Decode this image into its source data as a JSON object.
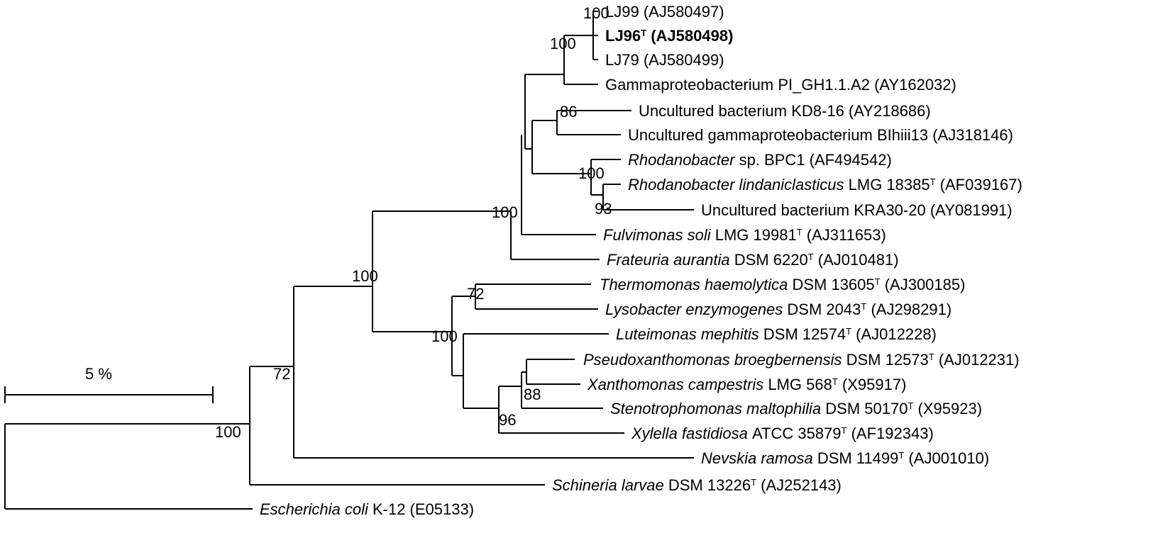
{
  "scale_bar": {
    "label": "5 %"
  },
  "taxa": [
    {
      "key": "lj99",
      "name": "LJ99",
      "type_strain": false,
      "accession": "(AJ580497)"
    },
    {
      "key": "lj96",
      "name": "LJ96",
      "type_strain": true,
      "accession": "(AJ580498)",
      "bold": true
    },
    {
      "key": "lj79",
      "name": "LJ79",
      "type_strain": false,
      "accession": "(AJ580499)"
    },
    {
      "key": "gamma_pi",
      "name": "Gammaproteobacterium PI_GH1.1.A2",
      "type_strain": false,
      "accession": "(AY162032)"
    },
    {
      "key": "unc_kd8",
      "name": "Uncultured bacterium KD8-16",
      "type_strain": false,
      "accession": "(AY218686)"
    },
    {
      "key": "unc_gamma",
      "name": "Uncultured gammaproteobacterium BIhiii13",
      "type_strain": false,
      "accession": "(AJ318146)"
    },
    {
      "key": "rhod_sp",
      "italic": "Rhodanobacter",
      "name": "sp. BPC1",
      "type_strain": false,
      "accession": "(AF494542)"
    },
    {
      "key": "rhod_lind",
      "italic": "Rhodanobacter lindaniclasticus",
      "name": "LMG 18385",
      "type_strain": true,
      "accession": "(AF039167)"
    },
    {
      "key": "unc_kra",
      "name": "Uncultured bacterium KRA30-20",
      "type_strain": false,
      "accession": "(AY081991)"
    },
    {
      "key": "fulvi",
      "italic": "Fulvimonas soli",
      "name": "LMG 19981",
      "type_strain": true,
      "accession": "(AJ311653)"
    },
    {
      "key": "frat",
      "italic": "Frateuria aurantia",
      "name": "DSM 6220",
      "type_strain": true,
      "accession": "(AJ010481)"
    },
    {
      "key": "thermo",
      "italic": "Thermomonas haemolytica",
      "name": "DSM 13605",
      "type_strain": true,
      "accession": "(AJ300185)"
    },
    {
      "key": "lyso",
      "italic": "Lysobacter enzymogenes",
      "name": "DSM 2043",
      "type_strain": true,
      "accession": "(AJ298291)"
    },
    {
      "key": "lutei",
      "italic": "Luteimonas mephitis",
      "name": "DSM 12574",
      "type_strain": true,
      "accession": "(AJ012228)"
    },
    {
      "key": "pseudo",
      "italic": "Pseudoxanthomonas broegbernensis",
      "name": "DSM 12573",
      "type_strain": true,
      "accession": "(AJ012231)"
    },
    {
      "key": "xanth",
      "italic": "Xanthomonas campestris",
      "name": "LMG 568",
      "type_strain": true,
      "accession": "(X95917)"
    },
    {
      "key": "steno",
      "italic": "Stenotrophomonas maltophilia",
      "name": "DSM 50170",
      "type_strain": true,
      "accession": "(X95923)"
    },
    {
      "key": "xylella",
      "italic": "Xylella fastidiosa",
      "name": "ATCC 35879",
      "type_strain": true,
      "accession": "(AF192343)"
    },
    {
      "key": "nevskia",
      "italic": "Nevskia ramosa",
      "name": "DSM 11499",
      "type_strain": true,
      "accession": "(AJ001010)"
    },
    {
      "key": "schineria",
      "italic": "Schineria larvae",
      "name": "DSM 13226",
      "type_strain": true,
      "accession": "(AJ252143)"
    },
    {
      "key": "ecoli",
      "italic": "Escherichia coli",
      "name": "K-12",
      "type_strain": false,
      "accession": "(E05133)"
    }
  ],
  "type_strain_mark": "T",
  "bootstrap": {
    "lj_group": "100",
    "lj_gamma": "100",
    "kd8_group": "86",
    "rhod_group": "100",
    "rhod_lind_kra": "93",
    "frateuria_clade": "100",
    "xanthomonadaceae": "100",
    "thermo_lyso": "72",
    "lysobacter_clade": "100",
    "xanth_steno_pseudo": "88",
    "xanth_xylella": "96",
    "nevskia_join": "72",
    "ingroup": "100"
  }
}
